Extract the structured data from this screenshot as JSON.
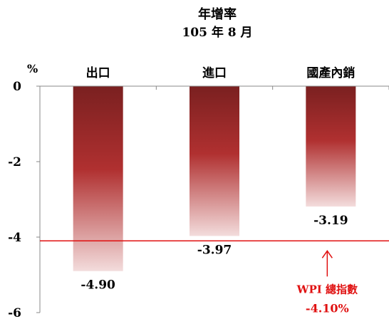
{
  "chart_data": {
    "type": "bar",
    "title": "年增率",
    "subtitle": "105 年 8 月",
    "ylabel": "%",
    "categories": [
      "出口",
      "進口",
      "國產內銷"
    ],
    "values": [
      -4.9,
      -3.97,
      -3.19
    ],
    "value_labels": [
      "-4.90",
      "-3.97",
      "-3.19"
    ],
    "ylim": [
      -6,
      0
    ],
    "yticks": [
      0,
      -2,
      -4,
      -6
    ],
    "ytick_labels": [
      "0",
      "-2",
      "-4",
      "-6"
    ],
    "grid": false,
    "legend": "none",
    "bar_colors": {
      "top": "#7a2020",
      "mid": "#b03030",
      "bottom": "#f3dcdc"
    },
    "reference_line": {
      "value": -4.1,
      "label": "WPI 總指數",
      "value_label": "-4.10%",
      "color": "#e01010"
    }
  }
}
